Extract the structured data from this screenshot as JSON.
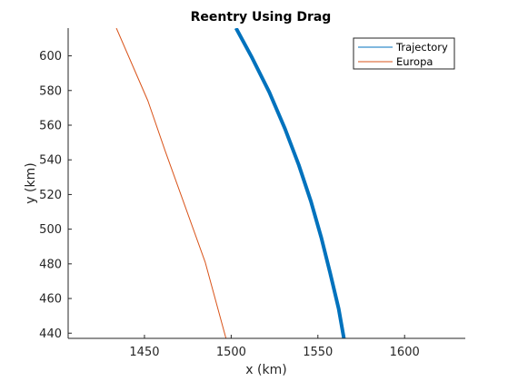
{
  "chart_data": {
    "type": "line",
    "title": "Reentry Using Drag",
    "xlabel": "x (km)",
    "ylabel": "y (km)",
    "xlim": [
      1406,
      1635
    ],
    "ylim": [
      437,
      616
    ],
    "xticks": [
      1450,
      1500,
      1550,
      1600
    ],
    "yticks": [
      440,
      460,
      480,
      500,
      520,
      540,
      560,
      580,
      600
    ],
    "grid": false,
    "legend_position": "top-right",
    "series": [
      {
        "name": "Trajectory",
        "color": "#0072BD",
        "style": "thick",
        "points": [
          [
            1502.8,
            616
          ],
          [
            1512,
            599
          ],
          [
            1522,
            579
          ],
          [
            1531,
            558
          ],
          [
            1539,
            537
          ],
          [
            1546,
            516
          ],
          [
            1552,
            495
          ],
          [
            1557,
            475
          ],
          [
            1562,
            454
          ],
          [
            1565,
            437
          ]
        ]
      },
      {
        "name": "Europa",
        "color": "#D95319",
        "style": "thin",
        "points": [
          [
            1433.8,
            616
          ],
          [
            1452,
            574
          ],
          [
            1462,
            545
          ],
          [
            1485,
            481
          ],
          [
            1497,
            437
          ]
        ]
      }
    ]
  }
}
